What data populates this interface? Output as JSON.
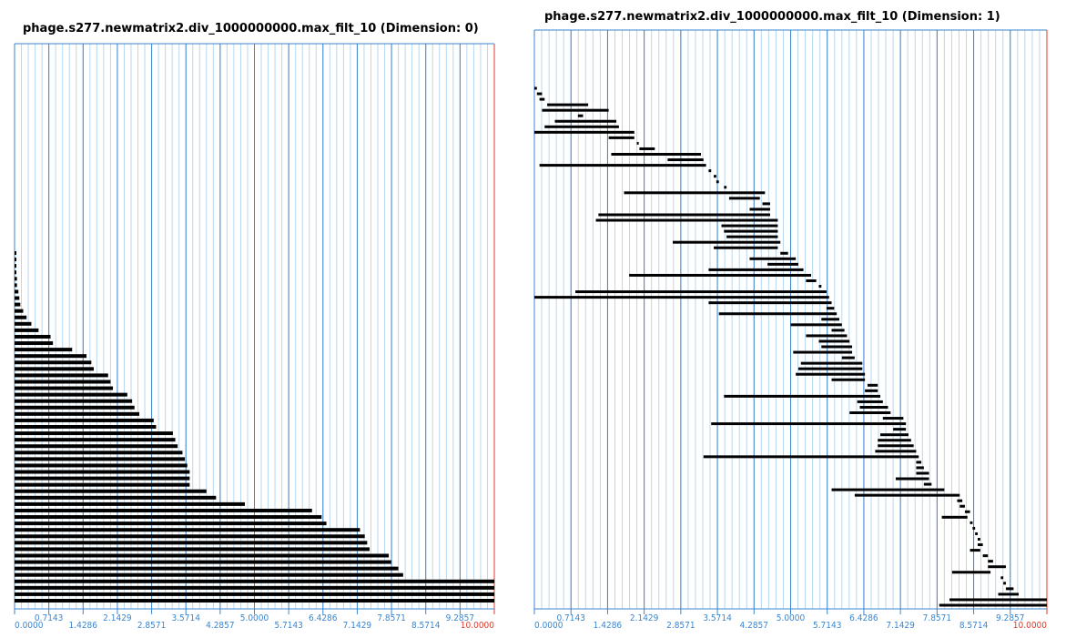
{
  "chart_data": [
    {
      "type": "barcode",
      "title": "phage.s277.newmatrix2.div_1000000000.max_filt_10 (Dimension: 0)",
      "xlim": [
        0,
        10
      ],
      "ticks": [
        "0.0000",
        "0.7143",
        "1.4286",
        "2.1429",
        "2.8571",
        "3.5714",
        "4.2857",
        "5.0000",
        "5.7143",
        "6.4286",
        "7.1429",
        "7.8571",
        "8.5714",
        "9.2857",
        "10.0000"
      ],
      "grid": true,
      "bars": [
        [
          0.0,
          0.0
        ],
        [
          0.0,
          0.0
        ],
        [
          0.0,
          0.0
        ],
        [
          0.0,
          0.0
        ],
        [
          0.0,
          0.05
        ],
        [
          0.0,
          0.05
        ],
        [
          0.0,
          0.08
        ],
        [
          0.0,
          0.1
        ],
        [
          0.0,
          0.12
        ],
        [
          0.0,
          0.18
        ],
        [
          0.0,
          0.25
        ],
        [
          0.0,
          0.35
        ],
        [
          0.0,
          0.5
        ],
        [
          0.0,
          0.75
        ],
        [
          0.0,
          0.8
        ],
        [
          0.0,
          1.2
        ],
        [
          0.0,
          1.5
        ],
        [
          0.0,
          1.6
        ],
        [
          0.0,
          1.65
        ],
        [
          0.0,
          1.95
        ],
        [
          0.0,
          2.0
        ],
        [
          0.0,
          2.05
        ],
        [
          0.0,
          2.35
        ],
        [
          0.0,
          2.45
        ],
        [
          0.0,
          2.5
        ],
        [
          0.0,
          2.6
        ],
        [
          0.0,
          2.9
        ],
        [
          0.0,
          2.95
        ],
        [
          0.0,
          3.3
        ],
        [
          0.0,
          3.35
        ],
        [
          0.0,
          3.4
        ],
        [
          0.0,
          3.5
        ],
        [
          0.0,
          3.55
        ],
        [
          0.0,
          3.6
        ],
        [
          0.0,
          3.65
        ],
        [
          0.0,
          3.65
        ],
        [
          0.0,
          3.65
        ],
        [
          0.0,
          4.0
        ],
        [
          0.0,
          4.2
        ],
        [
          0.0,
          4.8
        ],
        [
          0.0,
          6.2
        ],
        [
          0.0,
          6.4
        ],
        [
          0.0,
          6.5
        ],
        [
          0.0,
          7.2
        ],
        [
          0.0,
          7.3
        ],
        [
          0.0,
          7.35
        ],
        [
          0.0,
          7.4
        ],
        [
          0.0,
          7.8
        ],
        [
          0.0,
          7.85
        ],
        [
          0.0,
          8.0
        ],
        [
          0.0,
          8.1
        ],
        [
          0.0,
          10.0
        ],
        [
          0.0,
          10.0
        ],
        [
          0.0,
          10.0
        ],
        [
          0.0,
          10.0
        ]
      ]
    },
    {
      "type": "barcode",
      "title": "phage.s277.newmatrix2.div_1000000000.max_filt_10 (Dimension: 1)",
      "xlim": [
        0,
        10
      ],
      "ticks": [
        "0.0000",
        "0.7143",
        "1.4286",
        "2.1429",
        "2.8571",
        "3.5714",
        "4.2857",
        "5.0000",
        "5.7143",
        "6.4286",
        "7.1429",
        "7.8571",
        "8.5714",
        "9.2857",
        "10.0000"
      ],
      "grid": true,
      "bars": [
        [
          0.0,
          0.05
        ],
        [
          0.05,
          0.15
        ],
        [
          0.1,
          0.2
        ],
        [
          0.25,
          1.05
        ],
        [
          0.15,
          1.45
        ],
        [
          0.85,
          0.95
        ],
        [
          0.4,
          1.6
        ],
        [
          0.2,
          1.65
        ],
        [
          0.0,
          1.95
        ],
        [
          1.45,
          1.95
        ],
        [
          2.0,
          2.0
        ],
        [
          2.05,
          2.35
        ],
        [
          1.5,
          3.25
        ],
        [
          2.6,
          3.3
        ],
        [
          0.1,
          3.35
        ],
        [
          3.4,
          3.45
        ],
        [
          3.5,
          3.55
        ],
        [
          3.55,
          3.6
        ],
        [
          3.7,
          3.75
        ],
        [
          1.75,
          4.5
        ],
        [
          3.8,
          4.4
        ],
        [
          4.45,
          4.6
        ],
        [
          4.2,
          4.6
        ],
        [
          1.25,
          4.6
        ],
        [
          1.2,
          4.75
        ],
        [
          3.65,
          4.75
        ],
        [
          3.7,
          4.75
        ],
        [
          3.75,
          4.75
        ],
        [
          2.7,
          4.8
        ],
        [
          3.5,
          4.75
        ],
        [
          4.8,
          4.95
        ],
        [
          4.2,
          5.1
        ],
        [
          4.55,
          5.15
        ],
        [
          3.4,
          5.25
        ],
        [
          1.85,
          5.4
        ],
        [
          5.3,
          5.5
        ],
        [
          5.55,
          5.6
        ],
        [
          0.8,
          5.7
        ],
        [
          0.0,
          5.75
        ],
        [
          3.4,
          5.8
        ],
        [
          5.7,
          5.85
        ],
        [
          3.6,
          5.9
        ],
        [
          5.6,
          5.95
        ],
        [
          5.0,
          6.0
        ],
        [
          5.8,
          6.05
        ],
        [
          5.3,
          6.1
        ],
        [
          5.55,
          6.15
        ],
        [
          5.6,
          6.2
        ],
        [
          5.05,
          6.2
        ],
        [
          6.0,
          6.25
        ],
        [
          5.2,
          6.4
        ],
        [
          5.15,
          6.4
        ],
        [
          5.1,
          6.45
        ],
        [
          5.8,
          6.45
        ],
        [
          6.5,
          6.7
        ],
        [
          6.45,
          6.7
        ],
        [
          3.7,
          6.75
        ],
        [
          6.3,
          6.8
        ],
        [
          6.35,
          6.9
        ],
        [
          6.15,
          6.95
        ],
        [
          6.8,
          7.2
        ],
        [
          3.45,
          7.25
        ],
        [
          7.0,
          7.25
        ],
        [
          6.75,
          7.3
        ],
        [
          6.7,
          7.35
        ],
        [
          6.7,
          7.4
        ],
        [
          6.65,
          7.45
        ],
        [
          3.3,
          7.5
        ],
        [
          7.45,
          7.55
        ],
        [
          7.45,
          7.6
        ],
        [
          7.45,
          7.7
        ],
        [
          7.05,
          7.7
        ],
        [
          7.6,
          7.75
        ],
        [
          5.8,
          8.0
        ],
        [
          6.25,
          8.3
        ],
        [
          8.25,
          8.35
        ],
        [
          8.3,
          8.4
        ],
        [
          8.4,
          8.5
        ],
        [
          7.95,
          8.45
        ],
        [
          8.5,
          8.55
        ],
        [
          8.55,
          8.6
        ],
        [
          8.6,
          8.65
        ],
        [
          8.65,
          8.7
        ],
        [
          8.65,
          8.75
        ],
        [
          8.5,
          8.7
        ],
        [
          8.75,
          8.85
        ],
        [
          8.85,
          8.95
        ],
        [
          8.85,
          9.2
        ],
        [
          8.15,
          8.9
        ],
        [
          9.1,
          9.15
        ],
        [
          9.15,
          9.2
        ],
        [
          9.2,
          9.35
        ],
        [
          9.05,
          9.45
        ],
        [
          8.1,
          10.0
        ],
        [
          7.9,
          10.0
        ]
      ]
    }
  ]
}
